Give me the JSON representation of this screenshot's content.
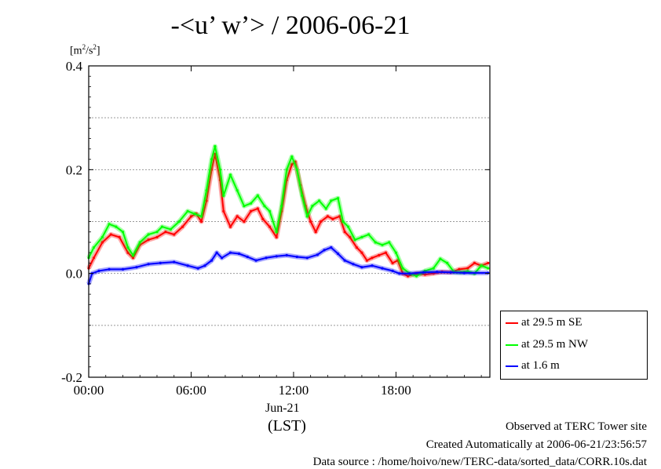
{
  "title": "-<u’ w’> / 2006-06-21",
  "unit_label": "[m²/s²]",
  "xaxis": {
    "sublabel": "Jun-21",
    "label": "(LST)"
  },
  "footer": {
    "line1": "Observed at TERC Tower site",
    "line2": "Created Automatically at 2006-06-21/23:56:57",
    "line3": "Data source : /home/hoivo/new/TERC-data/sorted_data/CORR.10s.dat"
  },
  "chart_data": {
    "type": "line",
    "xlim": [
      0,
      23.5
    ],
    "ylim": [
      -0.2,
      0.4
    ],
    "x_ticks": [
      {
        "value": 0,
        "label": "00:00"
      },
      {
        "value": 6,
        "label": "06:00"
      },
      {
        "value": 12,
        "label": "12:00"
      },
      {
        "value": 18,
        "label": "18:00"
      }
    ],
    "y_ticks": [
      {
        "value": -0.2,
        "label": "-0.2"
      },
      {
        "value": 0.0,
        "label": "0.0"
      },
      {
        "value": 0.2,
        "label": "0.2"
      },
      {
        "value": 0.4,
        "label": "0.4"
      }
    ],
    "y_gridlines": [
      -0.1,
      0.1,
      0.3
    ],
    "grid": "horizontal dashed",
    "legend_position": "right, lower",
    "series": [
      {
        "name": "at 29.5 m SE",
        "color": "#ff0000",
        "points": [
          [
            0,
            0.01
          ],
          [
            0.3,
            0.03
          ],
          [
            0.8,
            0.06
          ],
          [
            1.3,
            0.075
          ],
          [
            1.8,
            0.07
          ],
          [
            2.3,
            0.04
          ],
          [
            2.6,
            0.03
          ],
          [
            3.0,
            0.055
          ],
          [
            3.5,
            0.065
          ],
          [
            4.0,
            0.07
          ],
          [
            4.5,
            0.08
          ],
          [
            5.0,
            0.075
          ],
          [
            5.5,
            0.09
          ],
          [
            6.0,
            0.11
          ],
          [
            6.3,
            0.115
          ],
          [
            6.6,
            0.1
          ],
          [
            6.9,
            0.14
          ],
          [
            7.2,
            0.2
          ],
          [
            7.4,
            0.23
          ],
          [
            7.7,
            0.18
          ],
          [
            7.9,
            0.12
          ],
          [
            8.3,
            0.09
          ],
          [
            8.7,
            0.11
          ],
          [
            9.1,
            0.1
          ],
          [
            9.5,
            0.12
          ],
          [
            9.9,
            0.125
          ],
          [
            10.2,
            0.105
          ],
          [
            10.6,
            0.09
          ],
          [
            11.0,
            0.07
          ],
          [
            11.3,
            0.12
          ],
          [
            11.6,
            0.18
          ],
          [
            11.9,
            0.21
          ],
          [
            12.1,
            0.215
          ],
          [
            12.4,
            0.17
          ],
          [
            12.7,
            0.13
          ],
          [
            13.0,
            0.1
          ],
          [
            13.3,
            0.08
          ],
          [
            13.6,
            0.1
          ],
          [
            14.0,
            0.11
          ],
          [
            14.3,
            0.105
          ],
          [
            14.7,
            0.11
          ],
          [
            15.0,
            0.08
          ],
          [
            15.3,
            0.07
          ],
          [
            15.7,
            0.05
          ],
          [
            16.0,
            0.04
          ],
          [
            16.3,
            0.025
          ],
          [
            16.6,
            0.03
          ],
          [
            17.0,
            0.035
          ],
          [
            17.4,
            0.04
          ],
          [
            17.8,
            0.02
          ],
          [
            18.1,
            0.025
          ],
          [
            18.4,
            0.0
          ],
          [
            18.7,
            -0.005
          ],
          [
            19.2,
            0.0
          ],
          [
            19.7,
            -0.002
          ],
          [
            20.2,
            0.0
          ],
          [
            20.7,
            0.003
          ],
          [
            21.2,
            0.002
          ],
          [
            21.7,
            0.008
          ],
          [
            22.2,
            0.01
          ],
          [
            22.6,
            0.02
          ],
          [
            23.0,
            0.015
          ],
          [
            23.4,
            0.02
          ]
        ]
      },
      {
        "name": "at 29.5 m NW",
        "color": "#00ff00",
        "points": [
          [
            0,
            0.03
          ],
          [
            0.3,
            0.05
          ],
          [
            0.8,
            0.07
          ],
          [
            1.2,
            0.095
          ],
          [
            1.6,
            0.09
          ],
          [
            2.0,
            0.08
          ],
          [
            2.3,
            0.05
          ],
          [
            2.6,
            0.035
          ],
          [
            3.0,
            0.06
          ],
          [
            3.5,
            0.075
          ],
          [
            4.0,
            0.08
          ],
          [
            4.3,
            0.09
          ],
          [
            4.8,
            0.085
          ],
          [
            5.3,
            0.1
          ],
          [
            5.8,
            0.12
          ],
          [
            6.2,
            0.115
          ],
          [
            6.6,
            0.11
          ],
          [
            6.9,
            0.16
          ],
          [
            7.2,
            0.22
          ],
          [
            7.4,
            0.245
          ],
          [
            7.7,
            0.2
          ],
          [
            7.9,
            0.15
          ],
          [
            8.3,
            0.19
          ],
          [
            8.7,
            0.16
          ],
          [
            9.1,
            0.13
          ],
          [
            9.5,
            0.135
          ],
          [
            9.9,
            0.15
          ],
          [
            10.3,
            0.13
          ],
          [
            10.6,
            0.12
          ],
          [
            11.0,
            0.08
          ],
          [
            11.3,
            0.13
          ],
          [
            11.6,
            0.2
          ],
          [
            11.9,
            0.225
          ],
          [
            12.2,
            0.2
          ],
          [
            12.5,
            0.15
          ],
          [
            12.8,
            0.11
          ],
          [
            13.1,
            0.13
          ],
          [
            13.5,
            0.14
          ],
          [
            13.9,
            0.125
          ],
          [
            14.2,
            0.14
          ],
          [
            14.6,
            0.145
          ],
          [
            14.9,
            0.1
          ],
          [
            15.2,
            0.09
          ],
          [
            15.6,
            0.065
          ],
          [
            16.0,
            0.07
          ],
          [
            16.4,
            0.075
          ],
          [
            16.8,
            0.06
          ],
          [
            17.2,
            0.055
          ],
          [
            17.6,
            0.06
          ],
          [
            18.0,
            0.04
          ],
          [
            18.4,
            0.01
          ],
          [
            18.8,
            0.0
          ],
          [
            19.2,
            -0.005
          ],
          [
            19.7,
            0.005
          ],
          [
            20.2,
            0.01
          ],
          [
            20.6,
            0.028
          ],
          [
            21.0,
            0.02
          ],
          [
            21.4,
            0.003
          ],
          [
            21.8,
            0.002
          ],
          [
            22.2,
            0.004
          ],
          [
            22.6,
            0.0
          ],
          [
            23.0,
            0.015
          ],
          [
            23.4,
            0.01
          ]
        ]
      },
      {
        "name": "at 1.6 m",
        "color": "#0000ff",
        "points": [
          [
            0,
            -0.02
          ],
          [
            0.2,
            0.0
          ],
          [
            0.6,
            0.005
          ],
          [
            1.2,
            0.008
          ],
          [
            2.0,
            0.008
          ],
          [
            2.8,
            0.012
          ],
          [
            3.5,
            0.018
          ],
          [
            4.2,
            0.02
          ],
          [
            5.0,
            0.022
          ],
          [
            5.8,
            0.015
          ],
          [
            6.4,
            0.01
          ],
          [
            6.8,
            0.015
          ],
          [
            7.2,
            0.025
          ],
          [
            7.5,
            0.04
          ],
          [
            7.8,
            0.03
          ],
          [
            8.3,
            0.04
          ],
          [
            8.8,
            0.038
          ],
          [
            9.3,
            0.032
          ],
          [
            9.8,
            0.025
          ],
          [
            10.4,
            0.03
          ],
          [
            11.0,
            0.033
          ],
          [
            11.6,
            0.035
          ],
          [
            12.2,
            0.032
          ],
          [
            12.8,
            0.03
          ],
          [
            13.4,
            0.036
          ],
          [
            13.8,
            0.045
          ],
          [
            14.2,
            0.05
          ],
          [
            14.6,
            0.038
          ],
          [
            15.0,
            0.025
          ],
          [
            15.5,
            0.018
          ],
          [
            16.0,
            0.012
          ],
          [
            16.6,
            0.015
          ],
          [
            17.2,
            0.01
          ],
          [
            17.8,
            0.005
          ],
          [
            18.2,
            0.0
          ],
          [
            18.8,
            0.0
          ],
          [
            19.6,
            0.002
          ],
          [
            20.4,
            0.003
          ],
          [
            21.2,
            0.002
          ],
          [
            22.0,
            0.001
          ],
          [
            23.4,
            0.001
          ]
        ]
      }
    ]
  }
}
